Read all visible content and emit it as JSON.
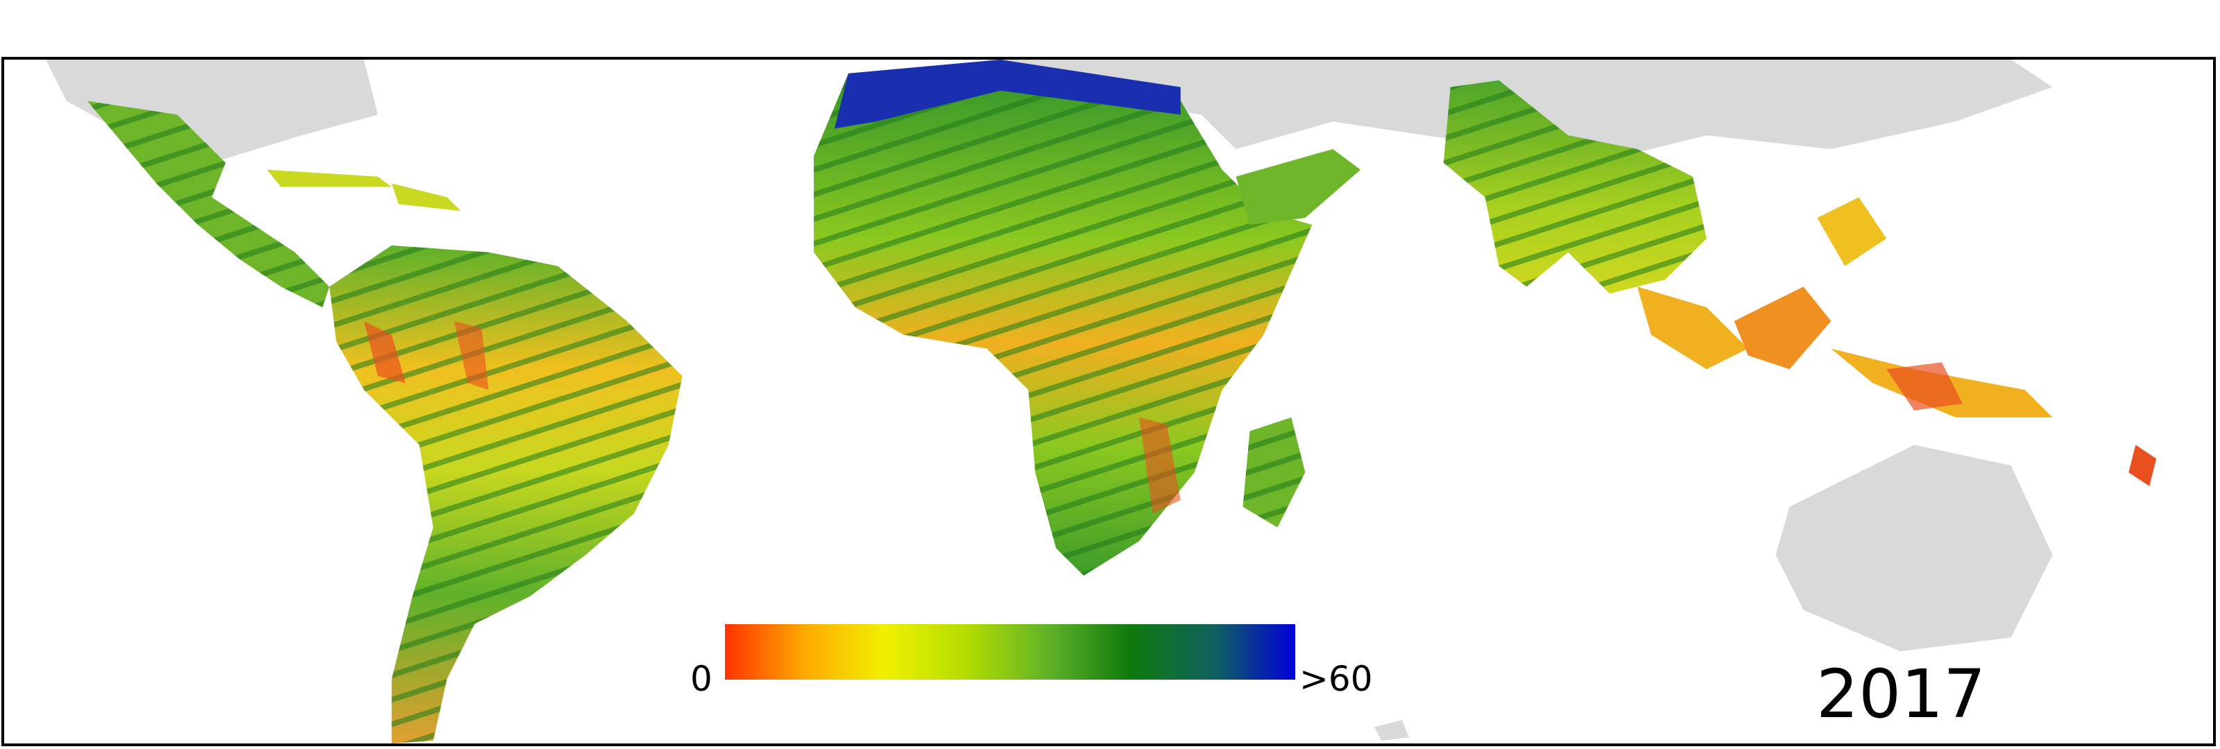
{
  "legend": {
    "min_label": "0",
    "max_label": ">60",
    "colors": [
      "#ff3300",
      "#ffaa00",
      "#f0f000",
      "#b5dd00",
      "#5fb12a",
      "#0f7a0c",
      "#106060",
      "#0000d8"
    ]
  },
  "year_label": "2017",
  "colors": {
    "background_land": "#d9d9d9",
    "frame": "#000000",
    "low": "#ff3300",
    "high": "#0000d8"
  }
}
